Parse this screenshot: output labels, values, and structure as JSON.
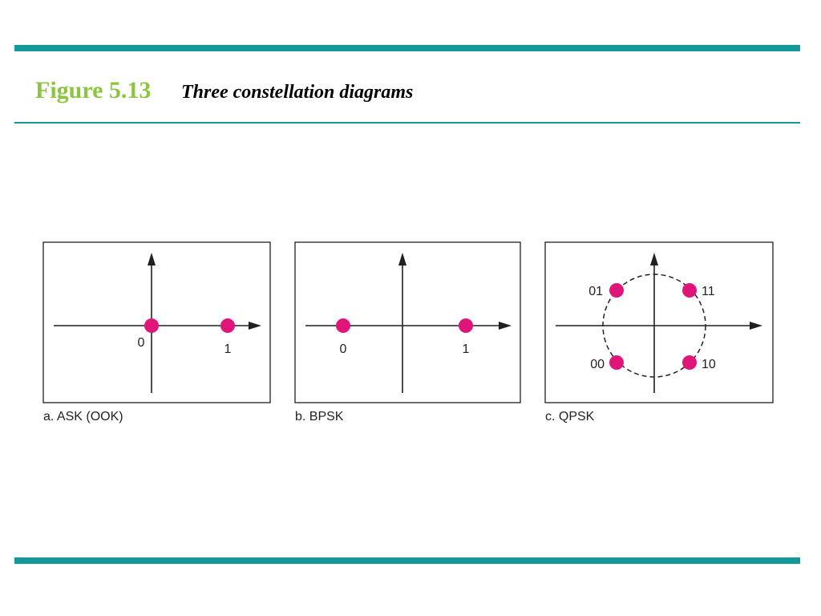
{
  "header": {
    "figure": "Figure 5.13",
    "title": "Three constellation diagrams"
  },
  "panels": [
    {
      "caption": "a. ASK (OOK)",
      "points": [
        {
          "label": "0"
        },
        {
          "label": "1"
        }
      ]
    },
    {
      "caption": "b. BPSK",
      "points": [
        {
          "label": "0"
        },
        {
          "label": "1"
        }
      ]
    },
    {
      "caption": "c. QPSK",
      "points": [
        {
          "label": "01"
        },
        {
          "label": "11"
        },
        {
          "label": "00"
        },
        {
          "label": "10"
        }
      ]
    }
  ]
}
